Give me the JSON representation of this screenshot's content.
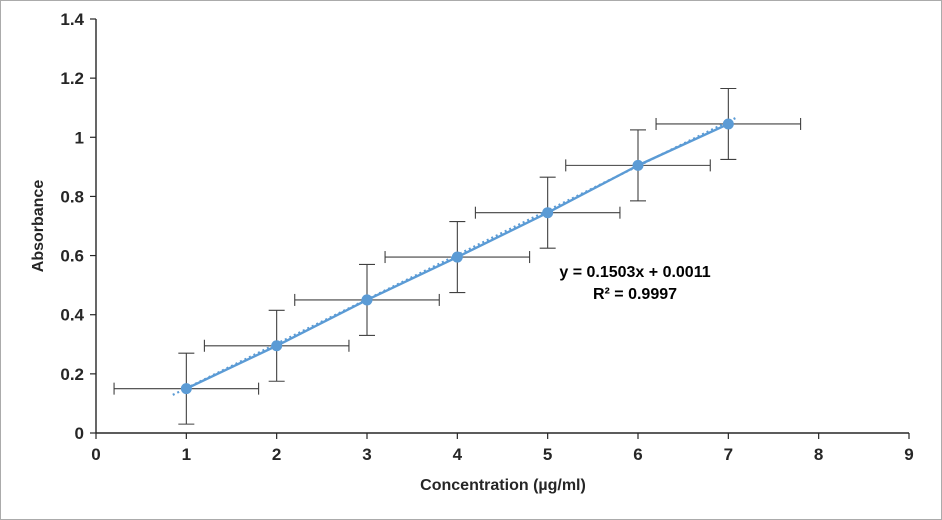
{
  "chart_data": {
    "type": "scatter",
    "title": "",
    "xlabel": "Concentration (µg/ml)",
    "ylabel": "Absorbance",
    "x": [
      1,
      2,
      3,
      4,
      5,
      6,
      7
    ],
    "y": [
      0.15,
      0.295,
      0.45,
      0.595,
      0.745,
      0.905,
      1.045
    ],
    "x_error": 0.8,
    "y_error": 0.12,
    "xlim": [
      0,
      9
    ],
    "ylim": [
      0,
      1.4
    ],
    "x_ticks": [
      "0",
      "1",
      "2",
      "3",
      "4",
      "5",
      "6",
      "7",
      "8",
      "9"
    ],
    "y_ticks": [
      "0",
      "0.2",
      "0.4",
      "0.6",
      "0.8",
      "1",
      "1.2",
      "1.4"
    ],
    "grid": false,
    "legend": "none",
    "trendline": {
      "slope": 0.1503,
      "intercept": 0.0011,
      "x_start": 0.85,
      "x_end": 7.1
    },
    "equation": {
      "line1": "y = 0.1503x + 0.0011",
      "line2": "R² = 0.9997"
    },
    "colors": {
      "marker": "#5B9BD5",
      "line": "#5B9BD5",
      "trendline": "#5B9BD5",
      "error_bar": "#404040",
      "axis": "#262626"
    }
  }
}
